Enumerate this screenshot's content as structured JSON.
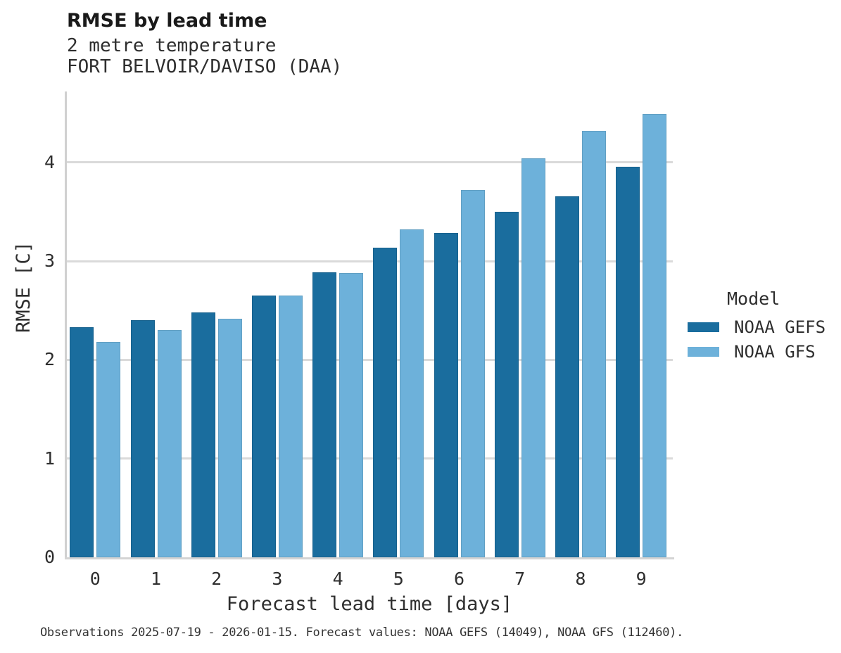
{
  "header": {
    "title": "RMSE by lead time",
    "subtitle_line1": "2 metre temperature",
    "subtitle_line2": "FORT BELVOIR/DAVISO (DAA)"
  },
  "chart_data": {
    "type": "bar",
    "title": "RMSE by lead time",
    "subtitle_lines": [
      "2 metre temperature",
      "FORT BELVOIR/DAVISO (DAA)"
    ],
    "categories": [
      "0",
      "1",
      "2",
      "3",
      "4",
      "5",
      "6",
      "7",
      "8",
      "9"
    ],
    "series": [
      {
        "name": "NOAA GEFS",
        "color": "#1a6d9e",
        "values": [
          2.33,
          2.4,
          2.48,
          2.65,
          2.89,
          3.14,
          3.29,
          3.5,
          3.66,
          3.96
        ]
      },
      {
        "name": "NOAA GFS",
        "color": "#6db1da",
        "values": [
          2.18,
          2.3,
          2.42,
          2.65,
          2.88,
          3.32,
          3.72,
          4.04,
          4.32,
          4.49
        ]
      }
    ],
    "xlabel": "Forecast lead time [days]",
    "ylabel": "RMSE [C]",
    "ylim": [
      0,
      4.72
    ],
    "yticks": [
      0,
      1,
      2,
      3,
      4
    ],
    "grid": "horizontal",
    "legend_title": "Model",
    "legend_position": "right"
  },
  "legend": {
    "title": "Model",
    "items": [
      {
        "label": "NOAA GEFS",
        "color": "#1a6d9e"
      },
      {
        "label": "NOAA GFS",
        "color": "#6db1da"
      }
    ]
  },
  "caption": "Observations 2025-07-19 - 2026-01-15. Forecast values: NOAA GEFS (14049), NOAA GFS (112460).",
  "colors": {
    "gefs": "#1a6d9e",
    "gfs": "#6db1da",
    "gridline": "#dadada",
    "spine": "#d0d0d0",
    "title_text": "#1a1a1a",
    "body_text": "#2e2e2e"
  }
}
